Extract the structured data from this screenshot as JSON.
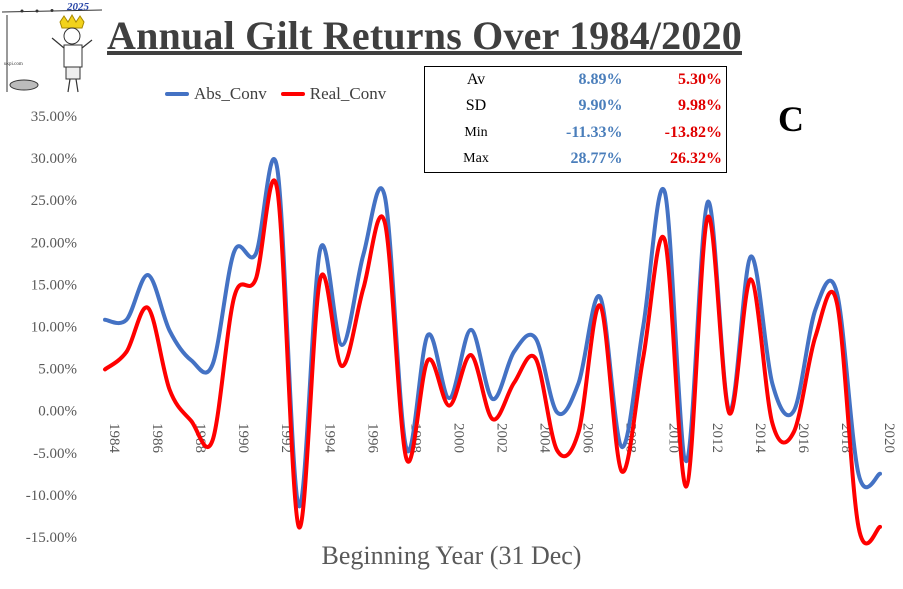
{
  "header": {
    "title": "Annual Gilt Returns Over 1984/2020",
    "logo_year": "2025",
    "logo_caption": "ukpi.com"
  },
  "copyright_symbol": "C",
  "stats": {
    "rows": [
      {
        "label": "Av",
        "abs": "8.89%",
        "real": "5.30%"
      },
      {
        "label": "SD",
        "abs": "9.90%",
        "real": "9.98%"
      },
      {
        "label": "Min",
        "abs": "-11.33%",
        "real": "-13.82%"
      },
      {
        "label": "Max",
        "abs": "28.77%",
        "real": "26.32%"
      }
    ]
  },
  "chart_data": {
    "type": "line",
    "title": "Annual Gilt Returns Over 1984/2020",
    "xlabel": "Beginning Year (31 Dec)",
    "ylabel": "",
    "ylim": [
      -15,
      35
    ],
    "yticks": [
      "35.00%",
      "30.00%",
      "25.00%",
      "20.00%",
      "15.00%",
      "10.00%",
      "5.00%",
      "0.00%",
      "-5.00%",
      "-10.00%",
      "-15.00%"
    ],
    "xtick_labels": [
      "1984",
      "1986",
      "1988",
      "1990",
      "1992",
      "1994",
      "1996",
      "1998",
      "2000",
      "2002",
      "2004",
      "2006",
      "2008",
      "2010",
      "2012",
      "2014",
      "2016",
      "2018",
      "2020"
    ],
    "legend_position": "top-left",
    "grid": false,
    "x": [
      1984,
      1985,
      1986,
      1987,
      1988,
      1989,
      1990,
      1991,
      1992,
      1993,
      1994,
      1995,
      1996,
      1997,
      1998,
      1999,
      2000,
      2001,
      2002,
      2003,
      2004,
      2005,
      2006,
      2007,
      2008,
      2009,
      2010,
      2011,
      2012,
      2013,
      2014,
      2015,
      2016,
      2017,
      2018,
      2019,
      2020
    ],
    "series": [
      {
        "name": "Abs_Conv",
        "color": "#4472c4",
        "values": [
          10.8,
          10.8,
          16.1,
          9.5,
          6.0,
          5.5,
          18.9,
          18.6,
          28.8,
          -11.3,
          19.2,
          7.8,
          18.5,
          25.4,
          -4.5,
          9.0,
          1.5,
          9.6,
          1.4,
          7.0,
          8.6,
          -0.2,
          3.3,
          13.5,
          -4.3,
          10.0,
          26.0,
          -6.0,
          24.8,
          0.0,
          18.3,
          3.2,
          0.0,
          12.0,
          14.0,
          -7.5,
          -7.5
        ]
      },
      {
        "name": "Real_Conv",
        "color": "#ff0000",
        "values": [
          4.9,
          7.0,
          12.2,
          2.5,
          -1.2,
          -3.5,
          13.5,
          15.6,
          26.3,
          -13.8,
          15.7,
          5.3,
          14.5,
          22.3,
          -5.7,
          6.0,
          0.6,
          6.6,
          -1.0,
          3.3,
          6.2,
          -4.7,
          -2.5,
          12.5,
          -7.2,
          6.3,
          20.3,
          -9.0,
          23.0,
          -0.3,
          15.6,
          -1.5,
          -2.5,
          8.8,
          12.8,
          -13.8,
          -13.8
        ]
      }
    ]
  }
}
